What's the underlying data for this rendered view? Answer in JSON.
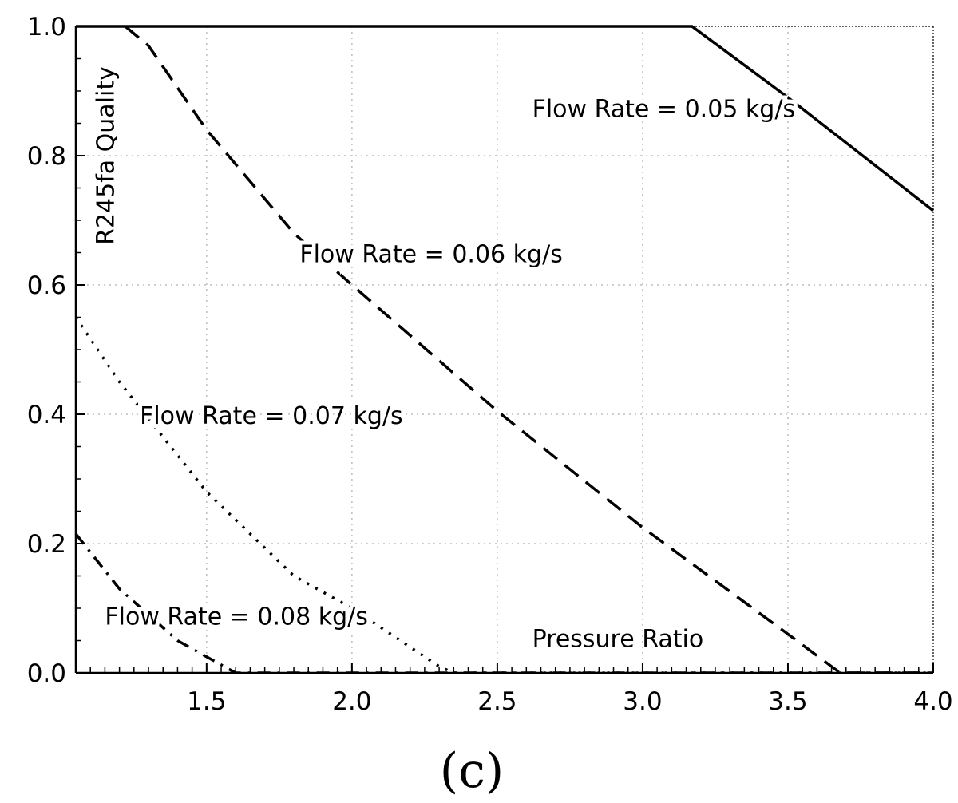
{
  "chart_data": {
    "type": "line",
    "xlabel": "Pressure Ratio",
    "ylabel": "R245fa Quality",
    "caption": "(c)",
    "xlim": [
      1.05,
      4.0
    ],
    "ylim": [
      0.0,
      1.0
    ],
    "grid": true,
    "x_ticks": [
      {
        "value": 1.5,
        "label": "1.5"
      },
      {
        "value": 2.0,
        "label": "2.0"
      },
      {
        "value": 2.5,
        "label": "2.5"
      },
      {
        "value": 3.0,
        "label": "3.0"
      },
      {
        "value": 3.5,
        "label": "3.5"
      },
      {
        "value": 4.0,
        "label": "4.0"
      }
    ],
    "y_ticks": [
      {
        "value": 0.0,
        "label": "0.0"
      },
      {
        "value": 0.2,
        "label": "0.2"
      },
      {
        "value": 0.4,
        "label": "0.4"
      },
      {
        "value": 0.6,
        "label": "0.6"
      },
      {
        "value": 0.8,
        "label": "0.8"
      },
      {
        "value": 1.0,
        "label": "1.0"
      }
    ],
    "series": [
      {
        "name": "Flow Rate = 0.05 kg/s",
        "style": "solid",
        "x": [
          1.05,
          3.17,
          3.5,
          4.0
        ],
        "y": [
          1.0,
          1.0,
          0.89,
          0.715
        ],
        "label_at": [
          2.62,
          0.86
        ]
      },
      {
        "name": "Flow Rate = 0.06 kg/s",
        "style": "dashed",
        "x": [
          1.22,
          1.3,
          1.5,
          1.8,
          2.0,
          2.5,
          3.0,
          3.5,
          3.68,
          4.0
        ],
        "y": [
          1.0,
          0.97,
          0.84,
          0.68,
          0.6,
          0.405,
          0.225,
          0.06,
          0.0,
          0.0
        ],
        "label_at": [
          1.82,
          0.635
        ]
      },
      {
        "name": "Flow Rate = 0.07 kg/s",
        "style": "dotted",
        "x": [
          1.05,
          1.2,
          1.5,
          1.8,
          2.0,
          2.3,
          2.35,
          4.0
        ],
        "y": [
          0.55,
          0.45,
          0.28,
          0.15,
          0.1,
          0.01,
          0.0,
          0.0
        ],
        "label_at": [
          1.27,
          0.385
        ]
      },
      {
        "name": "Flow Rate = 0.08 kg/s",
        "style": "dashdot",
        "x": [
          1.05,
          1.2,
          1.4,
          1.6,
          4.0
        ],
        "y": [
          0.215,
          0.13,
          0.05,
          0.0,
          0.0
        ],
        "label_at": [
          1.15,
          0.075
        ]
      }
    ],
    "xlabel_at": [
      2.62,
      0.04
    ],
    "ylabel_at": [
      1.18,
      0.8
    ]
  }
}
